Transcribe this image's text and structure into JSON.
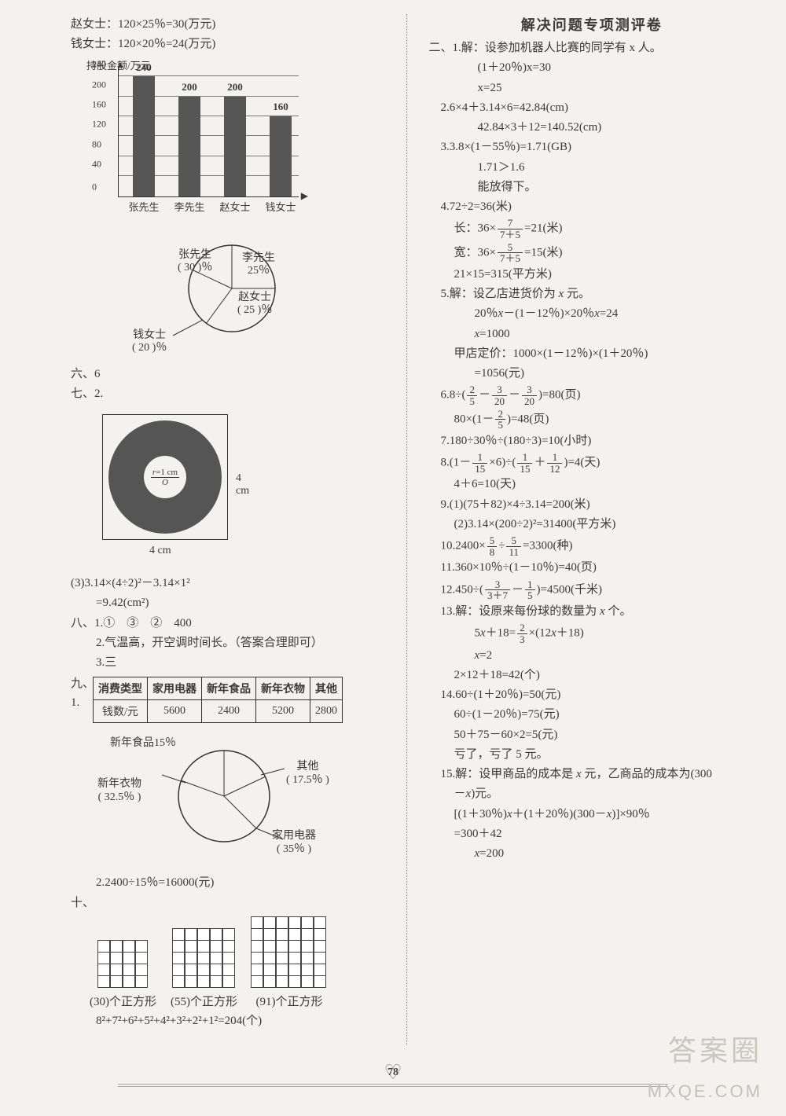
{
  "left": {
    "intro1": "赵女士：120×25％=30(万元)",
    "intro2": "钱女士：120×20％=24(万元)",
    "barChart": {
      "yLabel": "持股金额/万元",
      "yTicks": [
        0,
        40,
        80,
        120,
        160,
        200,
        240
      ],
      "yMax": 260,
      "bars": [
        {
          "label": "张先生",
          "value": 240,
          "color": "#565656"
        },
        {
          "label": "李先生",
          "value": 200,
          "color": "#565656"
        },
        {
          "label": "赵女士",
          "value": 200,
          "color": "#565656"
        },
        {
          "label": "钱女士",
          "value": 160,
          "color": "#565656"
        }
      ]
    },
    "pie1": {
      "labels": {
        "zhang": "张先生\n( 30 )％",
        "li": "李先生\n25％",
        "zhao": "赵女士\n( 25 )％",
        "qian": "钱女士\n( 20 )％"
      }
    },
    "six": "六、6",
    "seven": "七、2.",
    "donut": {
      "rLabel": "r=1 cm",
      "oLabel": "O",
      "side": "4 cm",
      "sideBottom": "4 cm"
    },
    "seven3a": "(3)3.14×(4÷2)²－3.14×1²",
    "seven3b": "=9.42(cm²)",
    "eight1": "八、1.①　③　②　400",
    "eight2": "2.气温高，开空调时间长。（答案合理即可）",
    "eight3": "3.三",
    "table": {
      "headers": [
        "消费类型",
        "家用电器",
        "新年食品",
        "新年衣物",
        "其他"
      ],
      "row0": "钱数/元",
      "cells": [
        "5600",
        "2400",
        "5200",
        "2800"
      ]
    },
    "nine": "九、1.",
    "pie2": {
      "labels": {
        "food": "新年食品15％",
        "cloth": "新年衣物\n( 32.5％ )",
        "other": "其他\n( 17.5％ )",
        "appl": "家用电器\n( 35％ )"
      }
    },
    "nine2": "2.2400÷15％=16000(元)",
    "ten": "十、",
    "grids": [
      {
        "n": 4,
        "cap": "(30)个正方形"
      },
      {
        "n": 5,
        "cap": "(55)个正方形"
      },
      {
        "n": 6,
        "cap": "(91)个正方形"
      }
    ],
    "tenFormula": "8²+7²+6²+5²+4²+3²+2²+1²=204(个)"
  },
  "right": {
    "title": "解决问题专项测评卷",
    "lines": [
      "二、1.解：设参加机器人比赛的同学有 x 人。",
      "　　(1＋20％)x=30",
      "　　x=25",
      "　2.6×4＋3.14×6=42.84(cm)",
      "　　42.84×3＋12=140.52(cm)",
      "　3.3.8×(1－55％)=1.71(GB)",
      "　　1.71＞1.6",
      "　　能放得下。",
      "　4.72÷2=36(米)"
    ]
  },
  "pageNumber": "78",
  "watermark1": "答案圈",
  "watermark2": "MXQE.COM"
}
